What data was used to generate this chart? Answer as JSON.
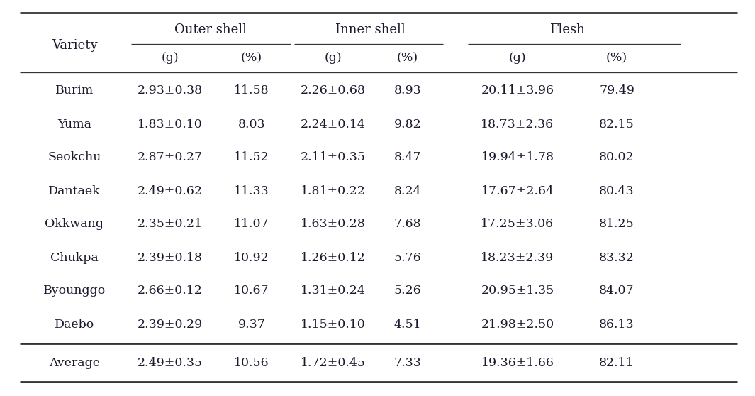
{
  "group_headers": [
    "Outer shell",
    "Inner shell",
    "Flesh"
  ],
  "sub_headers": [
    "(g)",
    "(%)",
    "(g)",
    "(%)",
    "(g)",
    "(%)"
  ],
  "rows": [
    [
      "Burim",
      "2.93±0.38",
      "11.58",
      "2.26±0.68",
      "8.93",
      "20.11±3.96",
      "79.49"
    ],
    [
      "Yuma",
      "1.83±0.10",
      "8.03",
      "2.24±0.14",
      "9.82",
      "18.73±2.36",
      "82.15"
    ],
    [
      "Seokchu",
      "2.87±0.27",
      "11.52",
      "2.11±0.35",
      "8.47",
      "19.94±1.78",
      "80.02"
    ],
    [
      "Dantaek",
      "2.49±0.62",
      "11.33",
      "1.81±0.22",
      "8.24",
      "17.67±2.64",
      "80.43"
    ],
    [
      "Okkwang",
      "2.35±0.21",
      "11.07",
      "1.63±0.28",
      "7.68",
      "17.25±3.06",
      "81.25"
    ],
    [
      "Chukpa",
      "2.39±0.18",
      "10.92",
      "1.26±0.12",
      "5.76",
      "18.23±2.39",
      "83.32"
    ],
    [
      "Byounggo",
      "2.66±0.12",
      "10.67",
      "1.31±0.24",
      "5.26",
      "20.95±1.35",
      "84.07"
    ],
    [
      "Daebo",
      "2.39±0.29",
      "9.37",
      "1.15±0.10",
      "4.51",
      "21.98±2.50",
      "86.13"
    ]
  ],
  "avg_row": [
    "Average",
    "2.49±0.35",
    "10.56",
    "1.72±0.45",
    "7.33",
    "19.36±1.66",
    "82.11"
  ],
  "bg_color": "#ffffff",
  "text_color": "#1a1a2e",
  "line_color": "#333333",
  "font_size": 12.5,
  "header_font_size": 13.0,
  "lw_thick": 2.0,
  "lw_thin": 0.9
}
